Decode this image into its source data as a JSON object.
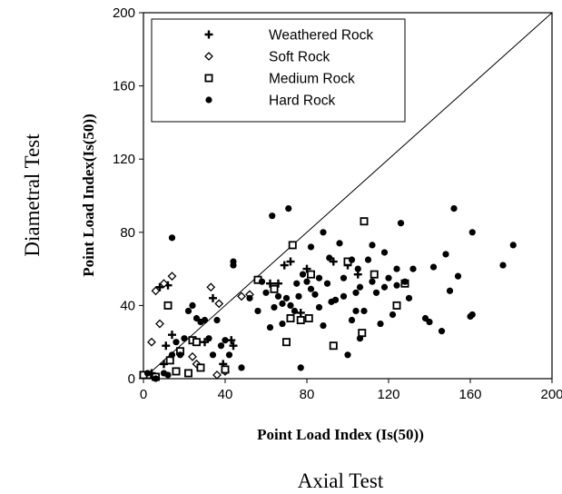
{
  "chart_data": {
    "type": "scatter",
    "title": "",
    "xlabel": "Point Load Index (Is(50))",
    "ylabel": "Point Load Index(Is(50))",
    "outer_xlabel": "Axial Test",
    "outer_ylabel": "Diametral Test",
    "xlim": [
      0,
      200
    ],
    "ylim": [
      0,
      200
    ],
    "xticks": [
      "0",
      "40",
      "80",
      "120",
      "160",
      "200"
    ],
    "yticks": [
      "0",
      "40",
      "80",
      "120",
      "160",
      "200"
    ],
    "grid": false,
    "legend_position": "top-left",
    "reference_line": {
      "from": [
        0,
        0
      ],
      "to": [
        200,
        200
      ]
    },
    "series": [
      {
        "name": "Weathered Rock",
        "marker": "plus",
        "points": [
          [
            8,
            50
          ],
          [
            12,
            51
          ],
          [
            10,
            8
          ],
          [
            11,
            18
          ],
          [
            4,
            3
          ],
          [
            14,
            24
          ],
          [
            30,
            20
          ],
          [
            34,
            44
          ],
          [
            39,
            8
          ],
          [
            43,
            21
          ],
          [
            44,
            18
          ],
          [
            62,
            52
          ],
          [
            66,
            52
          ],
          [
            69,
            62
          ],
          [
            72,
            64
          ],
          [
            77,
            36
          ],
          [
            80,
            60
          ],
          [
            93,
            64
          ],
          [
            100,
            62
          ],
          [
            105,
            57
          ]
        ]
      },
      {
        "name": "Soft Rock",
        "marker": "diamond",
        "points": [
          [
            6,
            48
          ],
          [
            10,
            52
          ],
          [
            14,
            56
          ],
          [
            8,
            30
          ],
          [
            33,
            50
          ],
          [
            37,
            41
          ],
          [
            26,
            8
          ],
          [
            24,
            12
          ],
          [
            36,
            2
          ],
          [
            40,
            4
          ],
          [
            52,
            46
          ],
          [
            48,
            45
          ],
          [
            4,
            20
          ]
        ]
      },
      {
        "name": "Medium Rock",
        "marker": "square",
        "points": [
          [
            12,
            40
          ],
          [
            13,
            10
          ],
          [
            22,
            3
          ],
          [
            18,
            15
          ],
          [
            24,
            21
          ],
          [
            26,
            20
          ],
          [
            28,
            6
          ],
          [
            40,
            5
          ],
          [
            56,
            54
          ],
          [
            64,
            49
          ],
          [
            70,
            20
          ],
          [
            72,
            33
          ],
          [
            73,
            73
          ],
          [
            77,
            32
          ],
          [
            81,
            33
          ],
          [
            82,
            57
          ],
          [
            93,
            18
          ],
          [
            100,
            64
          ],
          [
            107,
            25
          ],
          [
            108,
            86
          ],
          [
            113,
            57
          ],
          [
            124,
            40
          ],
          [
            128,
            52
          ],
          [
            2,
            2
          ],
          [
            0,
            2
          ],
          [
            6,
            1
          ],
          [
            16,
            4
          ]
        ]
      },
      {
        "name": "Hard Rock",
        "marker": "circle",
        "points": [
          [
            14,
            77
          ],
          [
            2,
            3
          ],
          [
            6,
            0
          ],
          [
            10,
            3
          ],
          [
            12,
            2
          ],
          [
            14,
            13
          ],
          [
            16,
            20
          ],
          [
            18,
            13
          ],
          [
            20,
            22
          ],
          [
            22,
            37
          ],
          [
            24,
            40
          ],
          [
            26,
            33
          ],
          [
            28,
            31
          ],
          [
            30,
            32
          ],
          [
            32,
            22
          ],
          [
            34,
            13
          ],
          [
            36,
            32
          ],
          [
            38,
            18
          ],
          [
            40,
            21
          ],
          [
            42,
            13
          ],
          [
            44,
            62
          ],
          [
            44,
            64
          ],
          [
            48,
            6
          ],
          [
            52,
            44
          ],
          [
            56,
            37
          ],
          [
            58,
            53
          ],
          [
            60,
            47
          ],
          [
            62,
            28
          ],
          [
            63,
            89
          ],
          [
            64,
            39
          ],
          [
            66,
            45
          ],
          [
            68,
            41
          ],
          [
            68,
            30
          ],
          [
            70,
            44
          ],
          [
            71,
            93
          ],
          [
            72,
            40
          ],
          [
            74,
            37
          ],
          [
            75,
            52
          ],
          [
            76,
            45
          ],
          [
            77,
            6
          ],
          [
            78,
            57
          ],
          [
            80,
            53
          ],
          [
            82,
            72
          ],
          [
            82,
            49
          ],
          [
            84,
            46
          ],
          [
            86,
            55
          ],
          [
            86,
            39
          ],
          [
            88,
            80
          ],
          [
            88,
            29
          ],
          [
            90,
            52
          ],
          [
            91,
            66
          ],
          [
            92,
            42
          ],
          [
            94,
            43
          ],
          [
            96,
            74
          ],
          [
            98,
            45
          ],
          [
            98,
            55
          ],
          [
            100,
            13
          ],
          [
            102,
            32
          ],
          [
            102,
            65
          ],
          [
            104,
            37
          ],
          [
            104,
            47
          ],
          [
            105,
            60
          ],
          [
            106,
            22
          ],
          [
            106,
            50
          ],
          [
            108,
            37
          ],
          [
            110,
            65
          ],
          [
            112,
            73
          ],
          [
            112,
            53
          ],
          [
            114,
            47
          ],
          [
            116,
            30
          ],
          [
            118,
            50
          ],
          [
            118,
            69
          ],
          [
            120,
            55
          ],
          [
            122,
            35
          ],
          [
            124,
            60
          ],
          [
            124,
            51
          ],
          [
            126,
            85
          ],
          [
            128,
            53
          ],
          [
            130,
            44
          ],
          [
            132,
            60
          ],
          [
            138,
            33
          ],
          [
            140,
            31
          ],
          [
            142,
            61
          ],
          [
            146,
            26
          ],
          [
            148,
            68
          ],
          [
            150,
            48
          ],
          [
            152,
            93
          ],
          [
            154,
            56
          ],
          [
            160,
            34
          ],
          [
            161,
            35
          ],
          [
            161,
            80
          ],
          [
            176,
            62
          ],
          [
            181,
            73
          ]
        ]
      }
    ]
  }
}
